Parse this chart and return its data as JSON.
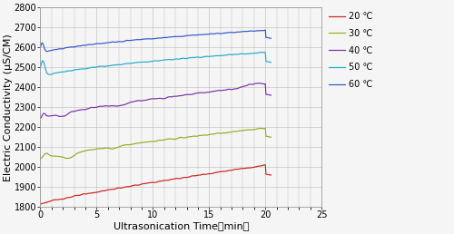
{
  "xlabel": "Ultrasonication Time（min）",
  "ylabel": "Electric Conductivity (μS/CM)",
  "xlim": [
    0,
    25
  ],
  "ylim": [
    1800,
    2800
  ],
  "yticks": [
    1800,
    1900,
    2000,
    2100,
    2200,
    2300,
    2400,
    2500,
    2600,
    2700,
    2800
  ],
  "xticks": [
    0,
    5,
    10,
    15,
    20,
    25
  ],
  "legend_labels": [
    "20 ℃",
    "30 ℃",
    "40 ℃",
    "50 ℃",
    "60 ℃"
  ],
  "line_colors": [
    "#cc2222",
    "#99aa22",
    "#7733aa",
    "#22aacc",
    "#3355cc"
  ],
  "figsize": [
    5.0,
    2.58
  ],
  "dpi": 100,
  "bg_color": "#f5f5f5",
  "grid_color": "#bbbbbb",
  "legend_fontsize": 7.0,
  "axis_fontsize": 8.0,
  "tick_fontsize": 7.0
}
